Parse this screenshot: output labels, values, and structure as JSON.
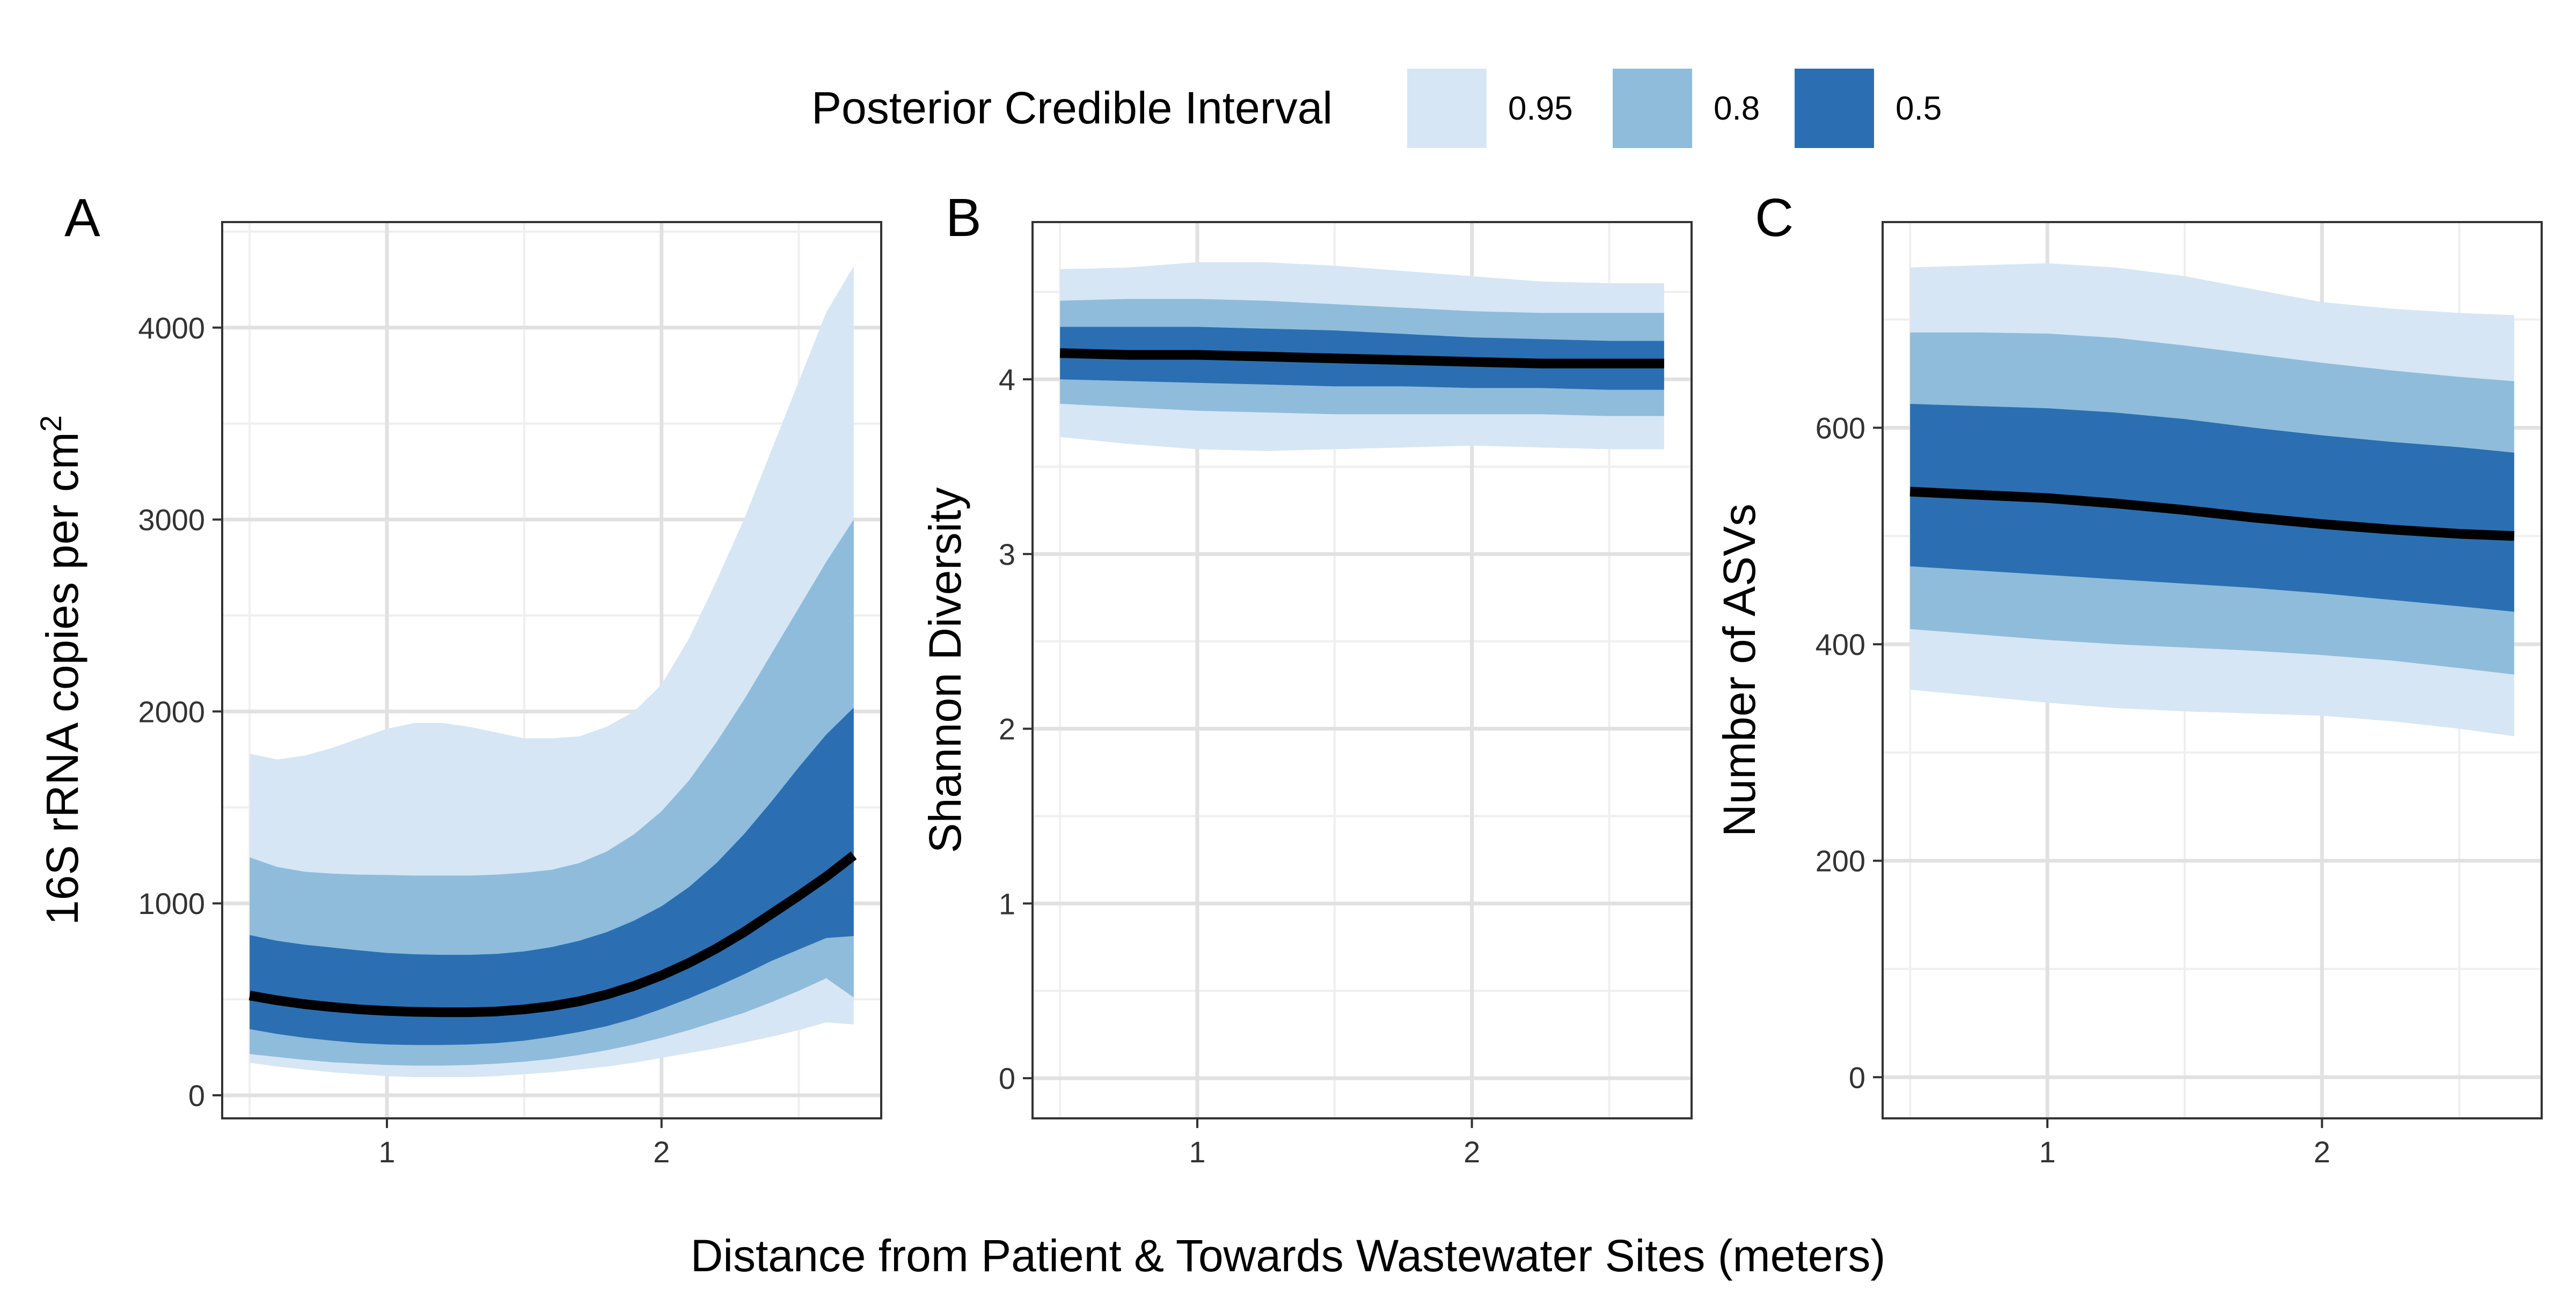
{
  "figure": {
    "xlabel": "Distance from Patient & Towards Wastewater Sites (meters)"
  },
  "legend": {
    "title": "Posterior Credible Interval",
    "entries": [
      {
        "label": "0.95",
        "color": "#d6e6f4"
      },
      {
        "label": "0.8",
        "color": "#8fbcdb"
      },
      {
        "label": "0.5",
        "color": "#2b6fb2"
      }
    ]
  },
  "colors": {
    "median_line": "#000000",
    "grid_major": "#e1e1e1",
    "grid_minor": "#efefef",
    "panel_border": "#333333"
  },
  "chart_data": [
    {
      "type": "area",
      "panel": "A",
      "ylabel": "16S rRNA copies per cm",
      "ylabel_superscript": "2",
      "xlim": [
        0.4,
        2.8
      ],
      "ylim": [
        -120,
        4550
      ],
      "x_ticks": [
        1,
        2
      ],
      "x_tick_labels": [
        "1",
        "2"
      ],
      "y_ticks": [
        0,
        1000,
        2000,
        3000,
        4000
      ],
      "y_tick_labels": [
        "0",
        "1000",
        "2000",
        "3000",
        "4000"
      ],
      "x": [
        0.5,
        0.6,
        0.7,
        0.8,
        0.9,
        1.0,
        1.1,
        1.2,
        1.3,
        1.4,
        1.5,
        1.6,
        1.7,
        1.8,
        1.9,
        2.0,
        2.1,
        2.2,
        2.3,
        2.4,
        2.5,
        2.6,
        2.7
      ],
      "bands": [
        {
          "level": "0.95",
          "lower": [
            170,
            150,
            135,
            120,
            110,
            100,
            95,
            95,
            95,
            100,
            110,
            120,
            135,
            150,
            170,
            195,
            220,
            245,
            275,
            305,
            340,
            380,
            370
          ],
          "upper": [
            1780,
            1750,
            1770,
            1810,
            1860,
            1910,
            1940,
            1940,
            1920,
            1890,
            1860,
            1860,
            1870,
            1920,
            2000,
            2140,
            2380,
            2680,
            3000,
            3360,
            3720,
            4080,
            4320
          ]
        },
        {
          "level": "0.8",
          "lower": [
            215,
            200,
            185,
            172,
            165,
            158,
            155,
            155,
            158,
            165,
            175,
            190,
            210,
            235,
            265,
            300,
            340,
            385,
            430,
            485,
            545,
            610,
            510
          ]
        },
        {
          "level": "0.5",
          "lower": [
            345,
            320,
            300,
            285,
            272,
            265,
            262,
            262,
            265,
            272,
            285,
            305,
            330,
            360,
            400,
            450,
            505,
            565,
            630,
            700,
            760,
            820,
            830
          ]
        }
      ],
      "bands_upper": {
        "0.8": [
          1240,
          1190,
          1165,
          1155,
          1150,
          1148,
          1145,
          1145,
          1145,
          1150,
          1160,
          1175,
          1210,
          1270,
          1360,
          1480,
          1640,
          1840,
          2060,
          2300,
          2540,
          2780,
          3000
        ],
        "0.5": [
          835,
          805,
          785,
          770,
          755,
          742,
          735,
          732,
          732,
          737,
          750,
          772,
          805,
          850,
          910,
          985,
          1085,
          1210,
          1360,
          1530,
          1710,
          1880,
          2020
        ]
      },
      "median": [
        520,
        495,
        475,
        460,
        448,
        440,
        435,
        433,
        433,
        437,
        448,
        465,
        490,
        525,
        570,
        625,
        690,
        765,
        850,
        945,
        1040,
        1140,
        1250
      ]
    },
    {
      "type": "area",
      "panel": "B",
      "ylabel": "Shannon Diversity",
      "xlim": [
        0.4,
        2.8
      ],
      "ylim": [
        -0.23,
        4.9
      ],
      "x_ticks": [
        1,
        2
      ],
      "x_tick_labels": [
        "1",
        "2"
      ],
      "y_ticks": [
        0,
        1,
        2,
        3,
        4
      ],
      "y_tick_labels": [
        "0",
        "1",
        "2",
        "3",
        "4"
      ],
      "x": [
        0.5,
        0.75,
        1.0,
        1.25,
        1.5,
        1.75,
        2.0,
        2.25,
        2.5,
        2.7
      ],
      "bands": [
        {
          "level": "0.95",
          "lower": [
            3.67,
            3.63,
            3.6,
            3.59,
            3.6,
            3.61,
            3.62,
            3.61,
            3.6,
            3.6
          ],
          "upper": [
            4.63,
            4.64,
            4.67,
            4.67,
            4.65,
            4.62,
            4.59,
            4.56,
            4.55,
            4.55
          ]
        },
        {
          "level": "0.8",
          "lower": [
            3.86,
            3.84,
            3.82,
            3.81,
            3.8,
            3.8,
            3.8,
            3.8,
            3.79,
            3.79
          ]
        },
        {
          "level": "0.5",
          "lower": [
            4.0,
            3.99,
            3.98,
            3.97,
            3.96,
            3.96,
            3.95,
            3.95,
            3.94,
            3.94
          ]
        }
      ],
      "bands_upper": {
        "0.8": [
          4.45,
          4.46,
          4.46,
          4.45,
          4.43,
          4.41,
          4.39,
          4.38,
          4.38,
          4.38
        ],
        "0.5": [
          4.3,
          4.3,
          4.3,
          4.29,
          4.28,
          4.26,
          4.24,
          4.23,
          4.22,
          4.22
        ]
      },
      "median": [
        4.15,
        4.14,
        4.14,
        4.13,
        4.12,
        4.11,
        4.1,
        4.09,
        4.09,
        4.09
      ]
    },
    {
      "type": "area",
      "panel": "C",
      "ylabel": "Number of ASVs",
      "xlim": [
        0.4,
        2.8
      ],
      "ylim": [
        -38,
        790
      ],
      "x_ticks": [
        1,
        2
      ],
      "x_tick_labels": [
        "1",
        "2"
      ],
      "y_ticks": [
        0,
        200,
        400,
        600
      ],
      "y_tick_labels": [
        "0",
        "200",
        "400",
        "600"
      ],
      "x": [
        0.5,
        0.75,
        1.0,
        1.25,
        1.5,
        1.75,
        2.0,
        2.25,
        2.5,
        2.7
      ],
      "bands": [
        {
          "level": "0.95",
          "lower": [
            358,
            352,
            346,
            341,
            338,
            336,
            334,
            329,
            322,
            315
          ],
          "upper": [
            748,
            750,
            752,
            748,
            740,
            728,
            716,
            710,
            706,
            704
          ]
        },
        {
          "level": "0.8",
          "lower": [
            414,
            409,
            404,
            400,
            397,
            394,
            390,
            385,
            378,
            372
          ]
        },
        {
          "level": "0.5",
          "lower": [
            472,
            468,
            464,
            460,
            456,
            452,
            447,
            441,
            435,
            430
          ]
        }
      ],
      "bands_upper": {
        "0.8": [
          688,
          688,
          687,
          683,
          676,
          668,
          660,
          653,
          647,
          643
        ],
        "0.5": [
          622,
          620,
          618,
          614,
          608,
          600,
          593,
          587,
          582,
          577
        ]
      },
      "median": [
        541,
        538,
        535,
        530,
        524,
        517,
        511,
        506,
        502,
        500
      ]
    }
  ]
}
